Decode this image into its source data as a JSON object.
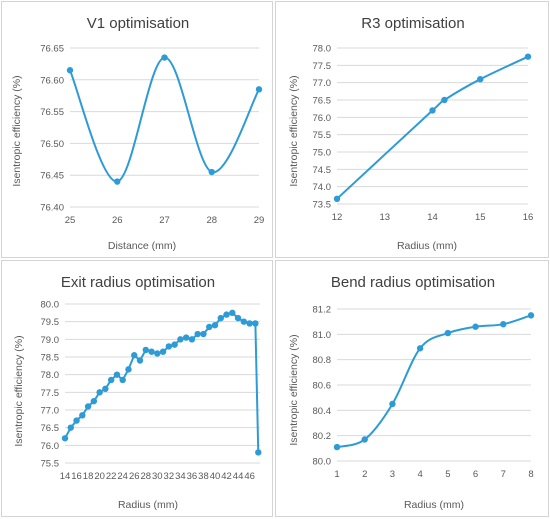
{
  "colors": {
    "series": "#2e9bd6",
    "grid": "#d9d9d9",
    "text": "#595959",
    "border": "#d4d4d4"
  },
  "chart_data": [
    {
      "type": "line",
      "title": "V1 optimisation",
      "xlabel": "Distance (mm)",
      "ylabel": "Isentropic efficiency (%)",
      "smooth": true,
      "grid": "horizontal",
      "xlim": [
        25,
        29
      ],
      "ylim": [
        76.4,
        76.65
      ],
      "xticks": [
        25,
        26,
        27,
        28,
        29
      ],
      "yticks": [
        76.4,
        76.45,
        76.5,
        76.55,
        76.6,
        76.65
      ],
      "xtick_labels": [
        "25",
        "26",
        "27",
        "28",
        "29"
      ],
      "ytick_labels": [
        "76.40",
        "76.45",
        "76.50",
        "76.55",
        "76.60",
        "76.65"
      ],
      "series": [
        {
          "x": [
            25,
            26,
            27,
            28,
            29
          ],
          "y": [
            76.615,
            76.44,
            76.635,
            76.455,
            76.585
          ]
        }
      ]
    },
    {
      "type": "line",
      "title": "R3 optimisation",
      "xlabel": "Radius (mm)",
      "ylabel": "Isentropic efficiency (%)",
      "smooth": true,
      "grid": "horizontal",
      "xlim": [
        12,
        16
      ],
      "ylim": [
        73.5,
        78.0
      ],
      "xticks": [
        12,
        13,
        14,
        15,
        16
      ],
      "yticks": [
        73.5,
        74.0,
        74.5,
        75.0,
        75.5,
        76.0,
        76.5,
        77.0,
        77.5,
        78.0
      ],
      "xtick_labels": [
        "12",
        "13",
        "14",
        "15",
        "16"
      ],
      "ytick_labels": [
        "73.5",
        "74.0",
        "74.5",
        "75.0",
        "75.5",
        "76.0",
        "76.5",
        "77.0",
        "77.5",
        "78.0"
      ],
      "series": [
        {
          "x": [
            12,
            14,
            14.25,
            15,
            16
          ],
          "y": [
            73.65,
            76.2,
            76.5,
            77.1,
            77.75
          ]
        }
      ]
    },
    {
      "type": "line",
      "title": "Exit radius optimisation",
      "xlabel": "Radius (mm)",
      "ylabel": "Isentropic efficiency (%)",
      "smooth": false,
      "grid": "horizontal",
      "xlim": [
        14,
        47.8
      ],
      "ylim": [
        75.5,
        80.0
      ],
      "xticks": [
        14,
        16,
        18,
        20,
        22,
        24,
        26,
        28,
        30,
        32,
        34,
        36,
        38,
        40,
        42,
        44,
        46
      ],
      "yticks": [
        75.5,
        76.0,
        76.5,
        77.0,
        77.5,
        78.0,
        78.5,
        79.0,
        79.5,
        80.0
      ],
      "xtick_labels": [
        "14",
        "16",
        "18",
        "20",
        "22",
        "24",
        "26",
        "28",
        "30",
        "32",
        "34",
        "36",
        "38",
        "40",
        "42",
        "44",
        "46"
      ],
      "ytick_labels": [
        "75.5",
        "76.0",
        "76.5",
        "77.0",
        "77.5",
        "78.0",
        "78.5",
        "79.0",
        "79.5",
        "80.0"
      ],
      "series": [
        {
          "x": [
            14,
            15,
            16,
            17,
            18,
            19,
            20,
            21,
            22,
            23,
            24,
            25,
            26,
            27,
            28,
            29,
            30,
            31,
            32,
            33,
            34,
            35,
            36,
            37,
            38,
            39,
            40,
            41,
            42,
            43,
            44,
            45,
            46,
            47,
            47.5
          ],
          "y": [
            76.2,
            76.5,
            76.7,
            76.85,
            77.1,
            77.25,
            77.5,
            77.6,
            77.85,
            78.0,
            77.85,
            78.15,
            78.55,
            78.4,
            78.7,
            78.65,
            78.6,
            78.65,
            78.8,
            78.85,
            79.0,
            79.05,
            79.0,
            79.15,
            79.15,
            79.35,
            79.4,
            79.6,
            79.7,
            79.75,
            79.6,
            79.5,
            79.45,
            79.45,
            75.8
          ]
        }
      ]
    },
    {
      "type": "line",
      "title": "Bend radius optimisation",
      "xlabel": "Radius (mm)",
      "ylabel": "Isentropic efficiency (%)",
      "smooth": true,
      "grid": "horizontal",
      "xlim": [
        1,
        8
      ],
      "ylim": [
        80.0,
        81.2
      ],
      "xticks": [
        1,
        2,
        3,
        4,
        5,
        6,
        7,
        8
      ],
      "yticks": [
        80.0,
        80.2,
        80.4,
        80.6,
        80.8,
        81.0,
        81.2
      ],
      "xtick_labels": [
        "1",
        "2",
        "3",
        "4",
        "5",
        "6",
        "7",
        "8"
      ],
      "ytick_labels": [
        "80.0",
        "80.2",
        "80.4",
        "80.6",
        "80.8",
        "81.0",
        "81.2"
      ],
      "series": [
        {
          "x": [
            1,
            2,
            3,
            4,
            5,
            6,
            7,
            8
          ],
          "y": [
            80.11,
            80.17,
            80.45,
            80.89,
            81.01,
            81.06,
            81.08,
            81.15
          ]
        }
      ]
    }
  ]
}
